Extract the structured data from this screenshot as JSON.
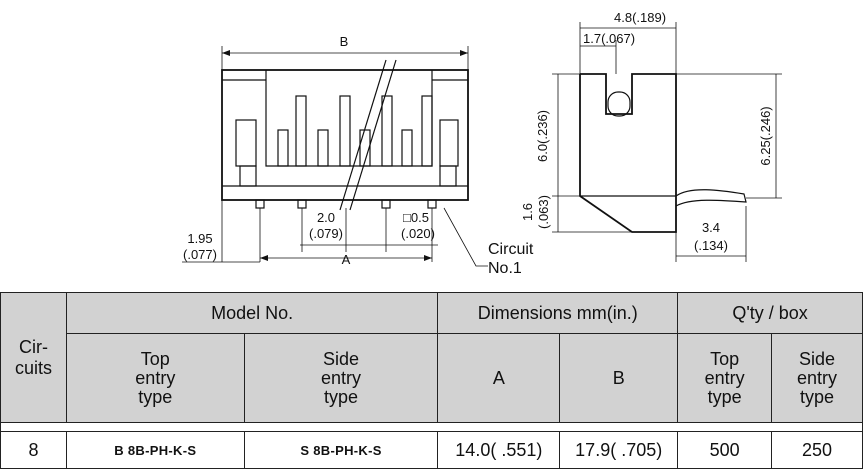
{
  "drawing": {
    "front": {
      "dim_b": "B",
      "dim_a": "A",
      "pitch": "2.0",
      "pitch_in": "(.079)",
      "pin": "□0.5",
      "pin_in": "(.020)",
      "edge": "1.95",
      "edge_in": "(.077)",
      "circuit_label_1": "Circuit",
      "circuit_label_2": "No.1"
    },
    "side": {
      "width_total": "4.8(.189)",
      "slot": "1.7(.067)",
      "height_body": "6.0(.236)",
      "height_total": "6.25(.246)",
      "base": "1.6",
      "base_in": "(.063)",
      "pin_len": "3.4",
      "pin_len_in": "(.134)"
    }
  },
  "table": {
    "circuits_header": "Cir-\ncuits",
    "model_no": "Model No.",
    "dimensions": "Dimensions mm(in.)",
    "qty_box": "Q'ty / box",
    "top_entry": "Top\nentry\ntype",
    "side_entry": "Side\nentry\ntype",
    "col_a": "A",
    "col_b": "B",
    "qty_top": "Top\nentry\ntype",
    "qty_side": "Side\nentry\ntype",
    "rows": [
      {
        "circuits": "8",
        "top_model": "B 8B-PH-K-S",
        "side_model": "S 8B-PH-K-S",
        "dim_a": "14.0( .551)",
        "dim_b": "17.9( .705)",
        "qty_top": "500",
        "qty_side": "250"
      }
    ]
  }
}
